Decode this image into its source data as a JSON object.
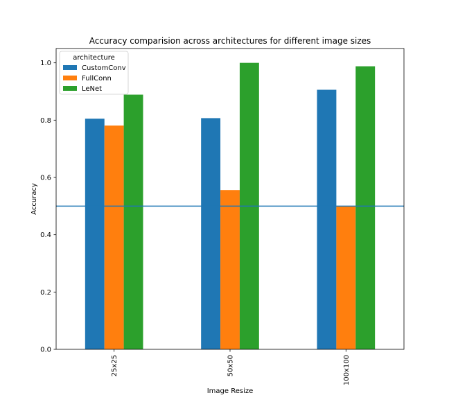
{
  "chart_data": {
    "type": "bar",
    "title": "Accuracy comparision across architectures for different image sizes",
    "xlabel": "Image Resize",
    "ylabel": "Accuracy",
    "categories": [
      "25x25",
      "50x50",
      "100x100"
    ],
    "series": [
      {
        "name": "CustomConv",
        "values": [
          0.805,
          0.807,
          0.906
        ],
        "color": "#1f77b4"
      },
      {
        "name": "FullConn",
        "values": [
          0.781,
          0.556,
          0.5
        ],
        "color": "#ff7f0e"
      },
      {
        "name": "LeNet",
        "values": [
          0.889,
          1.0,
          0.988
        ],
        "color": "#2ca02c"
      }
    ],
    "ylim": [
      0,
      1.05
    ],
    "yticks": [
      0.0,
      0.2,
      0.4,
      0.6,
      0.8,
      1.0
    ],
    "ytick_labels": [
      "0.0",
      "0.2",
      "0.4",
      "0.6",
      "0.8",
      "1.0"
    ],
    "reference_line": {
      "y": 0.5,
      "color": "#1f77b4"
    },
    "legend": {
      "title": "architecture",
      "placement": "top-left"
    },
    "grid": false,
    "xtick_rotation": 90
  }
}
